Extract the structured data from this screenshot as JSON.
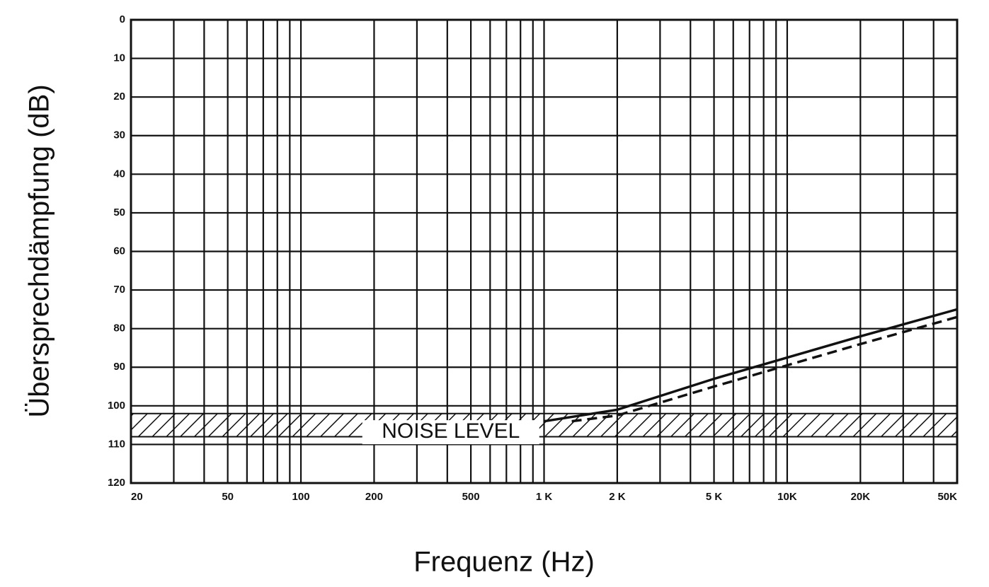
{
  "chart_data": {
    "type": "line",
    "xlabel": "Frequenz (Hz)",
    "ylabel": "Übersprechdämpfung (dB)",
    "xscale": "log",
    "xlim": [
      20,
      50000
    ],
    "ylim": [
      120,
      0
    ],
    "yticks": [
      0,
      10,
      20,
      30,
      40,
      50,
      60,
      70,
      80,
      90,
      100,
      110,
      120
    ],
    "xticks": [
      20,
      50,
      100,
      200,
      500,
      {
        "value": 1000,
        "label": "1 K"
      },
      {
        "value": 2000,
        "label": "2 K"
      },
      {
        "value": 5000,
        "label": "5 K"
      },
      {
        "value": 10000,
        "label": "10K"
      },
      {
        "value": 20000,
        "label": "20K"
      },
      {
        "value": 50000,
        "label": "50K"
      }
    ],
    "xminorticks": [
      30,
      40,
      60,
      70,
      80,
      90,
      300,
      400,
      600,
      700,
      800,
      900,
      3000,
      4000,
      6000,
      7000,
      8000,
      9000,
      30000,
      40000
    ],
    "grid": true,
    "noise_band": [
      102,
      108
    ],
    "noise_label": "NOISE LEVEL",
    "series": [
      {
        "style": "solid",
        "color": "#111111",
        "x": [
          1000,
          2000,
          5000,
          10000,
          20000,
          50000
        ],
        "values": [
          104,
          101,
          93,
          87.5,
          82,
          75
        ]
      },
      {
        "style": "dashed",
        "color": "#111111",
        "x": [
          1300,
          2000,
          5000,
          10000,
          20000,
          50000
        ],
        "values": [
          104,
          102.5,
          95,
          89.5,
          84,
          77
        ]
      }
    ]
  }
}
